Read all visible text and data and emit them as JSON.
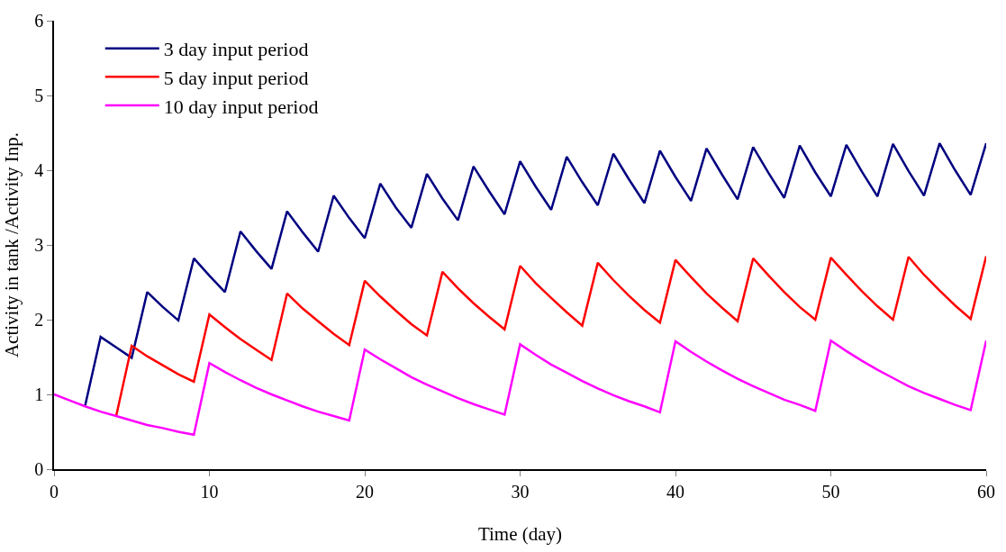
{
  "chart_data": {
    "type": "line",
    "xlabel": "Time (day)",
    "ylabel": "Activity in tank /Activity Inp.",
    "x": [
      0,
      1,
      2,
      3,
      4,
      5,
      6,
      7,
      8,
      9,
      10,
      11,
      12,
      13,
      14,
      15,
      16,
      17,
      18,
      19,
      20,
      21,
      22,
      23,
      24,
      25,
      26,
      27,
      28,
      29,
      30,
      31,
      32,
      33,
      34,
      35,
      36,
      37,
      38,
      39,
      40,
      41,
      42,
      43,
      44,
      45,
      46,
      47,
      48,
      49,
      50,
      51,
      52,
      53,
      54,
      55,
      56,
      57,
      58,
      59,
      60
    ],
    "series": [
      {
        "name": "3 day input period",
        "color": "#000080",
        "values": [
          null,
          null,
          0.85,
          1.77,
          1.63,
          1.49,
          2.37,
          2.17,
          1.99,
          2.82,
          2.59,
          2.37,
          3.18,
          2.92,
          2.68,
          3.45,
          3.17,
          2.91,
          3.66,
          3.36,
          3.09,
          3.82,
          3.5,
          3.23,
          3.95,
          3.62,
          3.33,
          4.05,
          3.72,
          3.41,
          4.12,
          3.78,
          3.47,
          4.18,
          3.84,
          3.53,
          4.22,
          3.88,
          3.56,
          4.26,
          3.91,
          3.59,
          4.29,
          3.94,
          3.61,
          4.31,
          3.96,
          3.63,
          4.33,
          3.97,
          3.65,
          4.34,
          3.98,
          3.65,
          4.35,
          3.99,
          3.66,
          4.36,
          4.0,
          3.67,
          4.36
        ]
      },
      {
        "name": "5 day input period",
        "color": "#ff0000",
        "values": [
          null,
          null,
          null,
          null,
          0.71,
          1.65,
          1.51,
          1.39,
          1.27,
          1.17,
          2.07,
          1.9,
          1.74,
          1.6,
          1.46,
          2.35,
          2.15,
          1.98,
          1.81,
          1.66,
          2.52,
          2.31,
          2.12,
          1.94,
          1.79,
          2.64,
          2.42,
          2.22,
          2.04,
          1.87,
          2.72,
          2.49,
          2.29,
          2.1,
          1.92,
          2.76,
          2.53,
          2.32,
          2.13,
          1.96,
          2.8,
          2.57,
          2.35,
          2.16,
          1.98,
          2.82,
          2.59,
          2.37,
          2.17,
          2.0,
          2.83,
          2.6,
          2.38,
          2.18,
          2.0,
          2.84,
          2.6,
          2.39,
          2.19,
          2.01,
          2.85
        ]
      },
      {
        "name": "10 day input period",
        "color": "#ff00ff",
        "values": [
          1.0,
          0.92,
          0.84,
          0.77,
          0.71,
          0.65,
          0.59,
          0.55,
          0.5,
          0.46,
          1.42,
          1.3,
          1.19,
          1.09,
          1.0,
          0.92,
          0.84,
          0.77,
          0.71,
          0.65,
          1.6,
          1.47,
          1.35,
          1.23,
          1.13,
          1.04,
          0.95,
          0.87,
          0.8,
          0.73,
          1.67,
          1.53,
          1.4,
          1.29,
          1.18,
          1.08,
          0.99,
          0.91,
          0.84,
          0.76,
          1.71,
          1.57,
          1.44,
          1.32,
          1.21,
          1.11,
          1.02,
          0.93,
          0.86,
          0.78,
          1.72,
          1.58,
          1.45,
          1.33,
          1.22,
          1.11,
          1.02,
          0.94,
          0.86,
          0.79,
          1.72
        ]
      }
    ],
    "xlim": [
      0,
      60
    ],
    "xticks": [
      0,
      10,
      20,
      30,
      40,
      50,
      60
    ],
    "ylim": [
      0,
      6
    ],
    "yticks": [
      0,
      1,
      2,
      3,
      4,
      5,
      6
    ],
    "legend": "top left",
    "marker": "none",
    "line_style": "solid"
  }
}
